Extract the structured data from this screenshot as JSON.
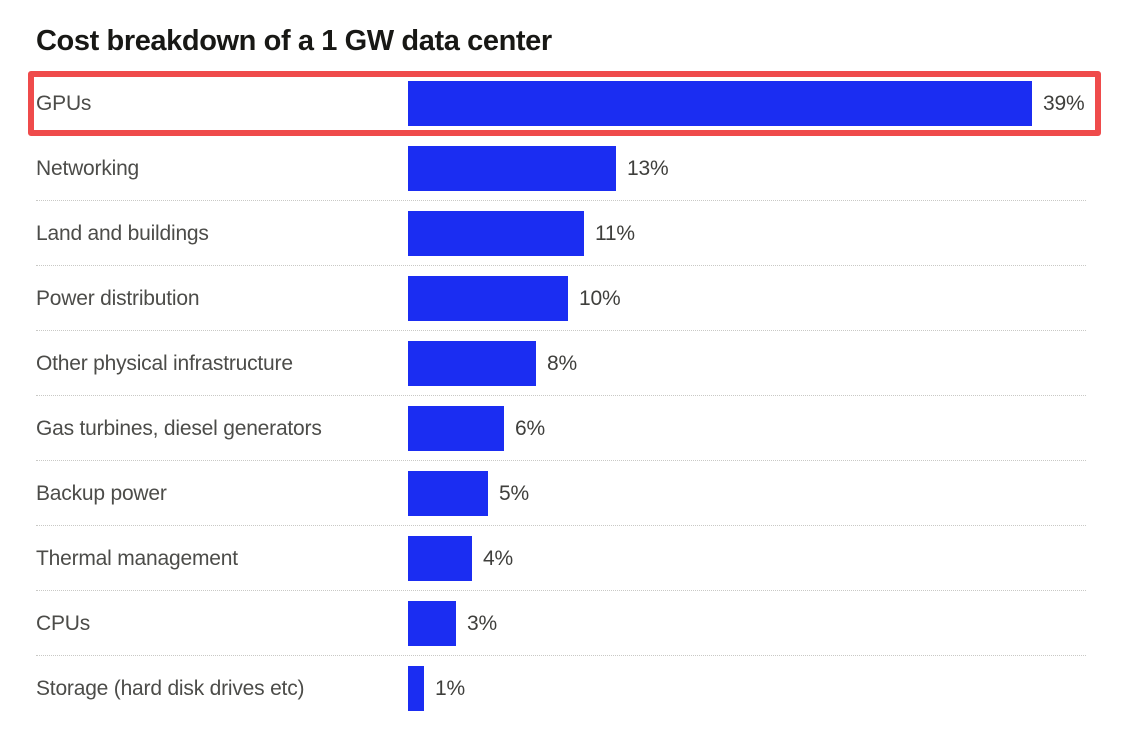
{
  "chart": {
    "title": "Cost breakdown of a 1 GW data center"
  },
  "chart_data": {
    "type": "bar",
    "orientation": "horizontal",
    "title": "Cost breakdown of a 1 GW data center",
    "xlabel": "",
    "ylabel": "",
    "categories": [
      "GPUs",
      "Networking",
      "Land and buildings",
      "Power distribution",
      "Other physical infrastructure",
      "Gas turbines, diesel generators",
      "Backup power",
      "Thermal management",
      "CPUs",
      "Storage (hard disk drives etc)"
    ],
    "values": [
      39,
      13,
      11,
      10,
      8,
      6,
      5,
      4,
      3,
      1
    ],
    "value_suffix": "%",
    "xlim": [
      0,
      40
    ],
    "grid": false,
    "legend": false,
    "highlighted_category": "GPUs",
    "highlight_index": 0,
    "annotations": [
      {
        "type": "highlight-box",
        "target": "GPUs",
        "color": "#ef4b4b"
      }
    ]
  },
  "colors": {
    "background": "#ffffff",
    "bar": "#1b2df2",
    "highlight_border": "#ef4b4b",
    "title_text": "#181815",
    "label_text": "#4c4c49",
    "value_text": "#3f3f3c",
    "separator": "#c9c9c6"
  }
}
